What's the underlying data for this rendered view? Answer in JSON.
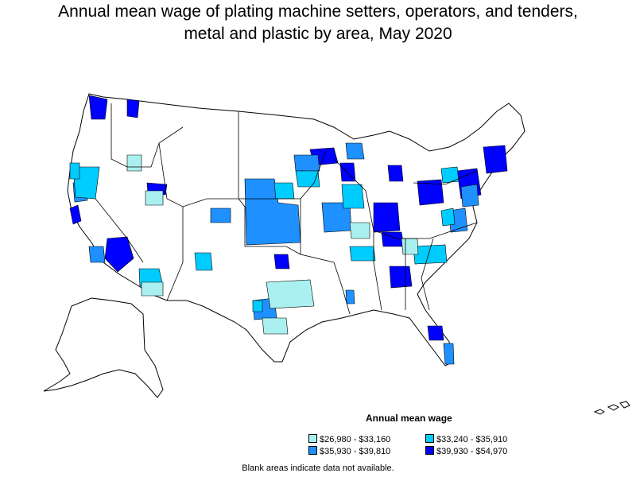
{
  "title": {
    "line1": "Annual mean wage of plating machine setters, operators, and tenders,",
    "line2": "metal and plastic by area, May 2020"
  },
  "legend": {
    "title": "Annual mean wage",
    "items": [
      {
        "label": "$26,980 - $33,160",
        "color": "#aaf0f0"
      },
      {
        "label": "$33,240 - $35,910",
        "color": "#00ccff"
      },
      {
        "label": "$35,930 - $39,810",
        "color": "#1e90ff"
      },
      {
        "label": "$39,930 - $54,970",
        "color": "#0000ff"
      }
    ]
  },
  "footnote": "Blank areas indicate data not available.",
  "colors": {
    "no_data": "#ffffff",
    "border": "#000000"
  }
}
